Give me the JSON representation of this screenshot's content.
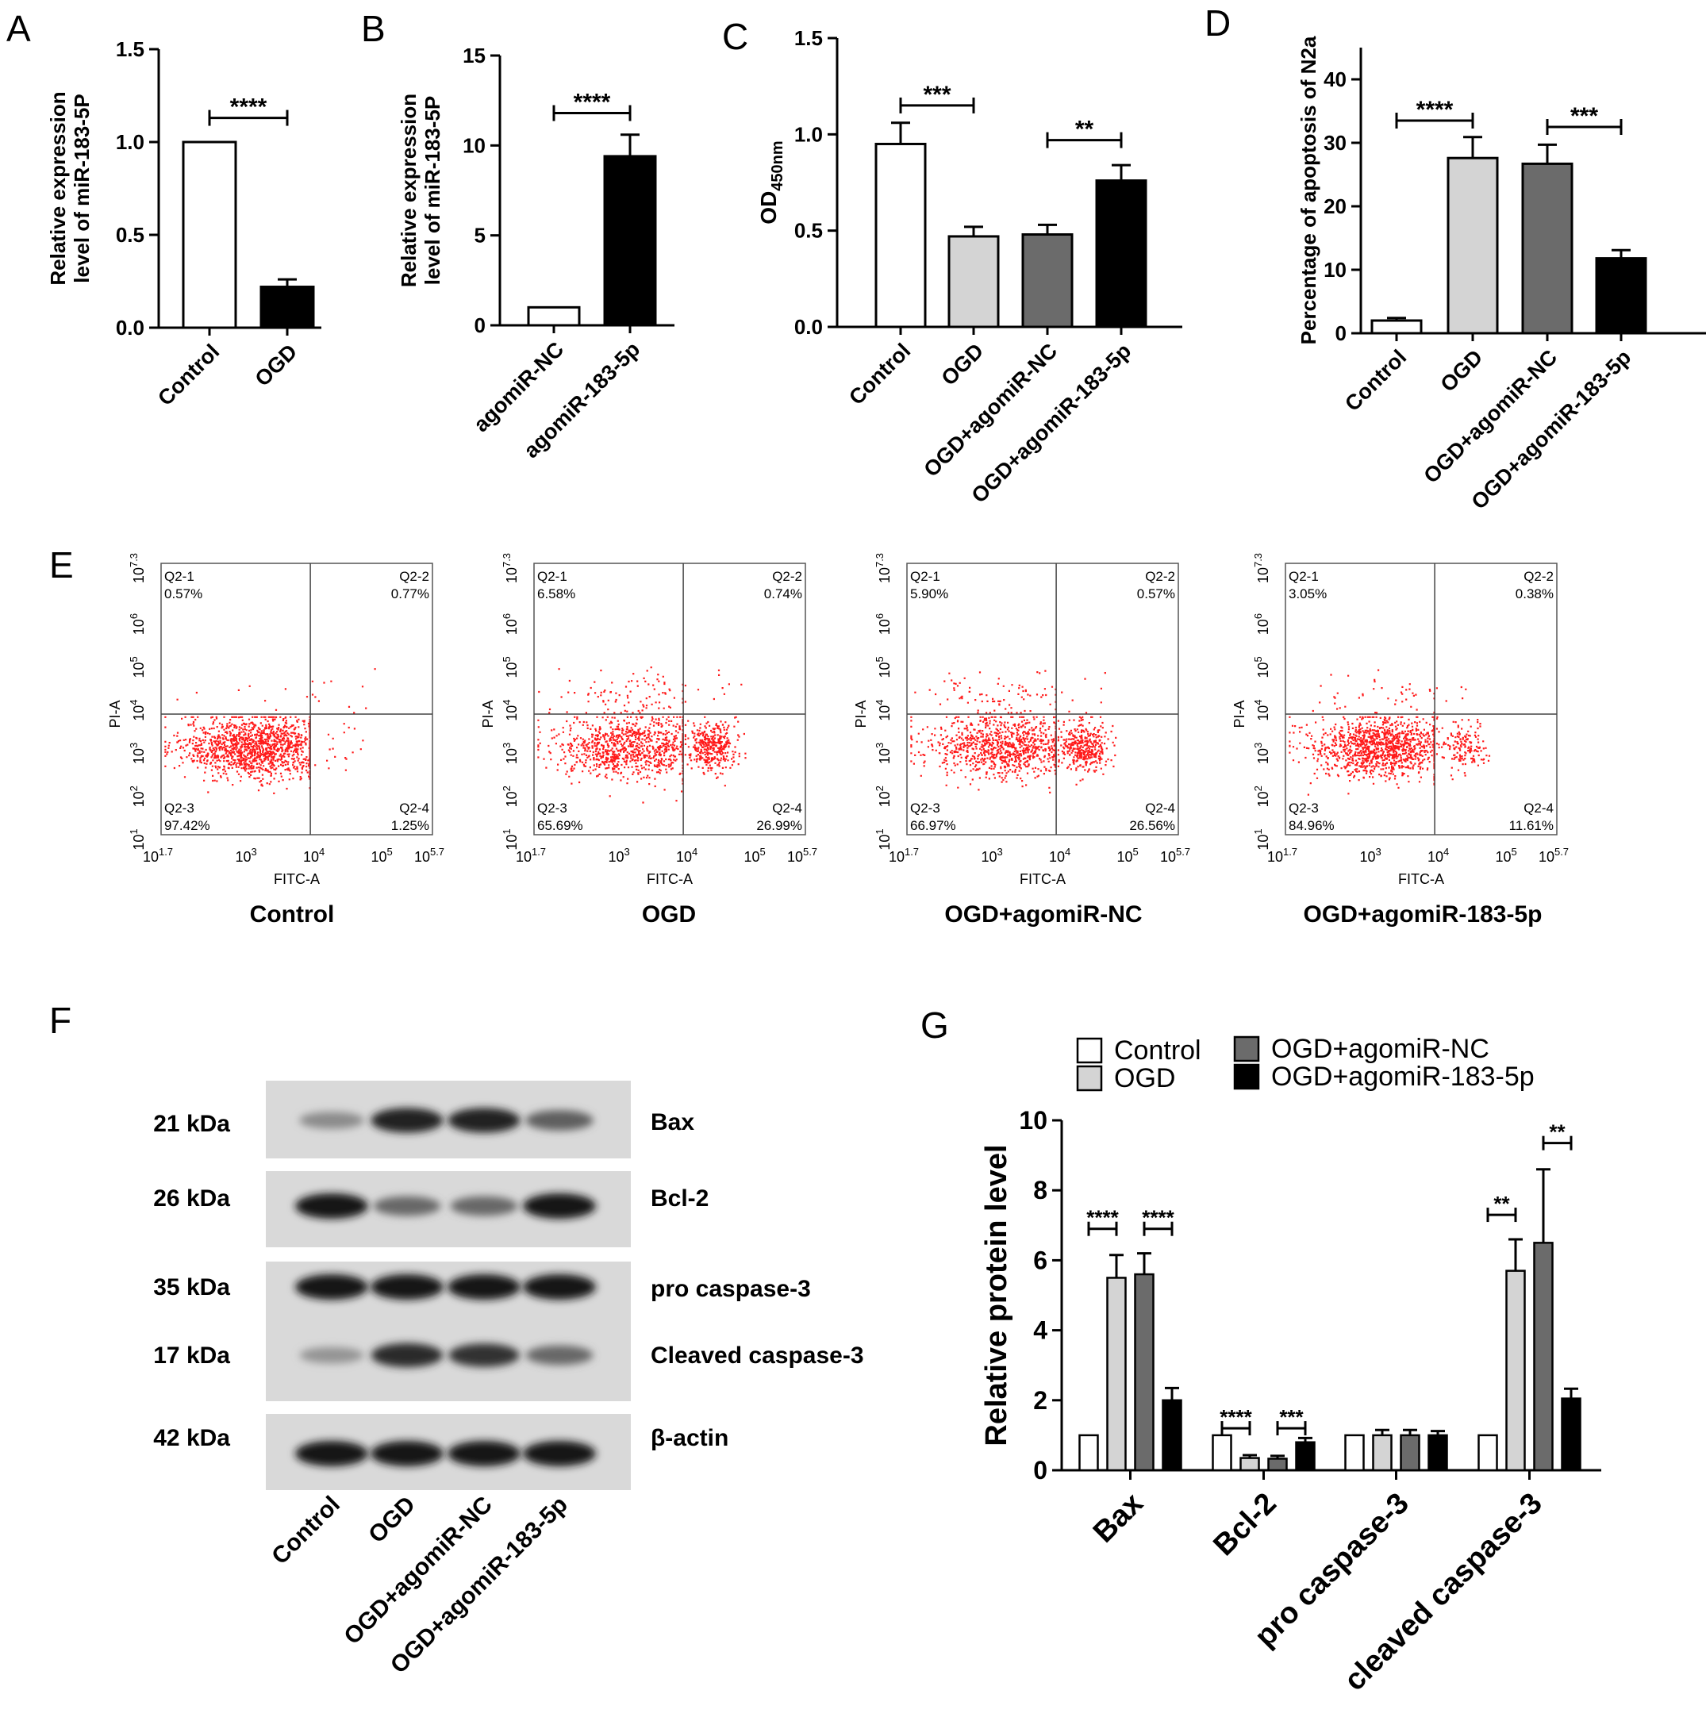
{
  "panels": {
    "A": {
      "letter": "A",
      "chart_data": {
        "type": "bar",
        "categories": [
          "Control",
          "OGD"
        ],
        "values": [
          1.0,
          0.22
        ],
        "errors": [
          0,
          0.04
        ],
        "fills": [
          "#ffffff",
          "#000000"
        ],
        "ylabel": [
          "Relative expression",
          "level of miR-183-5P"
        ],
        "ylim": [
          0,
          1.5
        ],
        "yticks": [
          "0.0",
          "0.5",
          "1.0",
          "1.5"
        ],
        "sig": [
          {
            "from": 0,
            "to": 1,
            "label": "****",
            "y": 1.13
          }
        ]
      }
    },
    "B": {
      "letter": "B",
      "chart_data": {
        "type": "bar",
        "categories": [
          "agomiR-NC",
          "agomiR-183-5p"
        ],
        "values": [
          1.0,
          9.4
        ],
        "errors": [
          0,
          1.2
        ],
        "fills": [
          "#ffffff",
          "#000000"
        ],
        "ylabel": [
          "Relative expression",
          "level of miR-183-5P"
        ],
        "ylim": [
          0,
          15
        ],
        "yticks": [
          "0",
          "5",
          "10",
          "15"
        ],
        "sig": [
          {
            "from": 0,
            "to": 1,
            "label": "****",
            "y": 11.8
          }
        ]
      }
    },
    "C": {
      "letter": "C",
      "chart_data": {
        "type": "bar",
        "categories": [
          "Control",
          "OGD",
          "OGD+agomiR-NC",
          "OGD+agomiR-183-5p"
        ],
        "values": [
          0.95,
          0.47,
          0.48,
          0.76
        ],
        "errors": [
          0.11,
          0.05,
          0.05,
          0.08
        ],
        "fills": [
          "#ffffff",
          "#d4d4d4",
          "#6b6b6b",
          "#000000"
        ],
        "ylabel_main": "OD",
        "ylabel_sub": "450nm",
        "ylim": [
          0,
          1.5
        ],
        "yticks": [
          "0.0",
          "0.5",
          "1.0",
          "1.5"
        ],
        "sig": [
          {
            "from": 0,
            "to": 1,
            "label": "***",
            "y": 1.15
          },
          {
            "from": 2,
            "to": 3,
            "label": "**",
            "y": 0.97
          }
        ]
      }
    },
    "D": {
      "letter": "D",
      "chart_data": {
        "type": "bar",
        "categories": [
          "Control",
          "OGD",
          "OGD+agomiR-NC",
          "OGD+agomiR-183-5p"
        ],
        "values": [
          2.0,
          27.6,
          26.7,
          11.8
        ],
        "errors": [
          0.4,
          3.3,
          3.0,
          1.3
        ],
        "fills": [
          "#ffffff",
          "#d4d4d4",
          "#6b6b6b",
          "#000000"
        ],
        "ylabel": "Percentage of apoptosis of N2a",
        "ylim": [
          0,
          45
        ],
        "yticks": [
          "0",
          "10",
          "20",
          "30",
          "40"
        ],
        "sig": [
          {
            "from": 0,
            "to": 1,
            "label": "****",
            "y": 33.5
          },
          {
            "from": 2,
            "to": 3,
            "label": "***",
            "y": 32.5
          }
        ]
      }
    },
    "E": {
      "letter": "E",
      "xlabel": "FITC-A",
      "ylabel": "PI-A",
      "xticks": [
        {
          "b": "10",
          "e": "1.7"
        },
        {
          "b": "10",
          "e": "3"
        },
        {
          "b": "10",
          "e": "4"
        },
        {
          "b": "10",
          "e": "5"
        },
        {
          "b": "10",
          "e": "5.7"
        }
      ],
      "yticks": [
        {
          "b": "10",
          "e": "1"
        },
        {
          "b": "10",
          "e": "2"
        },
        {
          "b": "10",
          "e": "3"
        },
        {
          "b": "10",
          "e": "4"
        },
        {
          "b": "10",
          "e": "5"
        },
        {
          "b": "10",
          "e": "6"
        },
        {
          "b": "10",
          "e": "7.3"
        }
      ],
      "gate_x": 3.9,
      "gate_y": 3.8,
      "plots": [
        {
          "title": "Control",
          "q1n": "Q2-1",
          "q1": "0.57%",
          "q2n": "Q2-2",
          "q2": "0.77%",
          "q3n": "Q2-3",
          "q3": "97.42%",
          "q4n": "Q2-4",
          "q4": "1.25%"
        },
        {
          "title": "OGD",
          "q1n": "Q2-1",
          "q1": "6.58%",
          "q2n": "Q2-2",
          "q2": "0.74%",
          "q3n": "Q2-3",
          "q3": "65.69%",
          "q4n": "Q2-4",
          "q4": "26.99%"
        },
        {
          "title": "OGD+agomiR-NC",
          "q1n": "Q2-1",
          "q1": "5.90%",
          "q2n": "Q2-2",
          "q2": "0.57%",
          "q3n": "Q2-3",
          "q3": "66.97%",
          "q4n": "Q2-4",
          "q4": "26.56%"
        },
        {
          "title": "OGD+agomiR-183-5p",
          "q1n": "Q2-1",
          "q1": "3.05%",
          "q2n": "Q2-2",
          "q2": "0.38%",
          "q3n": "Q2-3",
          "q3": "84.96%",
          "q4n": "Q2-4",
          "q4": "11.61%"
        }
      ]
    },
    "F": {
      "letter": "F",
      "rows": [
        {
          "kda": "21 kDa",
          "protein": "Bax",
          "intensity": [
            0.35,
            0.95,
            0.95,
            0.6
          ]
        },
        {
          "kda": "26 kDa",
          "protein": "Bcl-2",
          "intensity": [
            1.0,
            0.55,
            0.55,
            1.0
          ]
        },
        {
          "kda": "35 kDa",
          "protein": "pro caspase-3",
          "intensity": [
            1.0,
            1.0,
            1.0,
            1.0
          ]
        },
        {
          "kda": "17 kDa",
          "protein": "Cleaved caspase-3",
          "intensity": [
            0.3,
            0.9,
            0.85,
            0.55
          ]
        },
        {
          "kda": "42 kDa",
          "protein": "β-actin",
          "intensity": [
            1.0,
            1.0,
            1.0,
            1.0
          ]
        }
      ],
      "lanes": [
        "Control",
        "OGD",
        "OGD+agomiR-NC",
        "OGD+agomiR-183-5p"
      ]
    },
    "G": {
      "letter": "G",
      "chart_data": {
        "type": "bar",
        "categories": [
          "Bax",
          "Bcl-2",
          "pro caspase-3",
          "cleaved caspase-3"
        ],
        "series": [
          {
            "name": "Control",
            "fill": "#ffffff",
            "values": [
              1.0,
              1.0,
              1.0,
              1.0
            ],
            "errors": [
              0,
              0,
              0,
              0
            ]
          },
          {
            "name": "OGD",
            "fill": "#d4d4d4",
            "values": [
              5.5,
              0.35,
              1.0,
              5.7
            ],
            "errors": [
              0.65,
              0.08,
              0.15,
              0.9
            ]
          },
          {
            "name": "OGD+agomiR-NC",
            "fill": "#6b6b6b",
            "values": [
              5.6,
              0.33,
              1.0,
              6.5
            ],
            "errors": [
              0.6,
              0.08,
              0.15,
              2.1
            ]
          },
          {
            "name": "OGD+agomiR-183-5p",
            "fill": "#000000",
            "values": [
              2.0,
              0.8,
              1.0,
              2.05
            ],
            "errors": [
              0.35,
              0.12,
              0.12,
              0.28
            ]
          }
        ],
        "ylabel": "Relative protein level",
        "ylim": [
          0,
          10
        ],
        "yticks": [
          "0",
          "2",
          "4",
          "6",
          "8",
          "10"
        ],
        "legend": "top",
        "sig": [
          {
            "cat": 0,
            "from": 0,
            "to": 1,
            "label": "****",
            "y": 6.9
          },
          {
            "cat": 0,
            "from": 2,
            "to": 3,
            "label": "****",
            "y": 6.9
          },
          {
            "cat": 1,
            "from": 0,
            "to": 1,
            "label": "****",
            "y": 1.2
          },
          {
            "cat": 1,
            "from": 2,
            "to": 3,
            "label": "***",
            "y": 1.2
          },
          {
            "cat": 3,
            "from": 0,
            "to": 1,
            "label": "**",
            "y": 7.3
          },
          {
            "cat": 3,
            "from": 2,
            "to": 3,
            "label": "**",
            "y": 9.35
          }
        ]
      }
    }
  }
}
